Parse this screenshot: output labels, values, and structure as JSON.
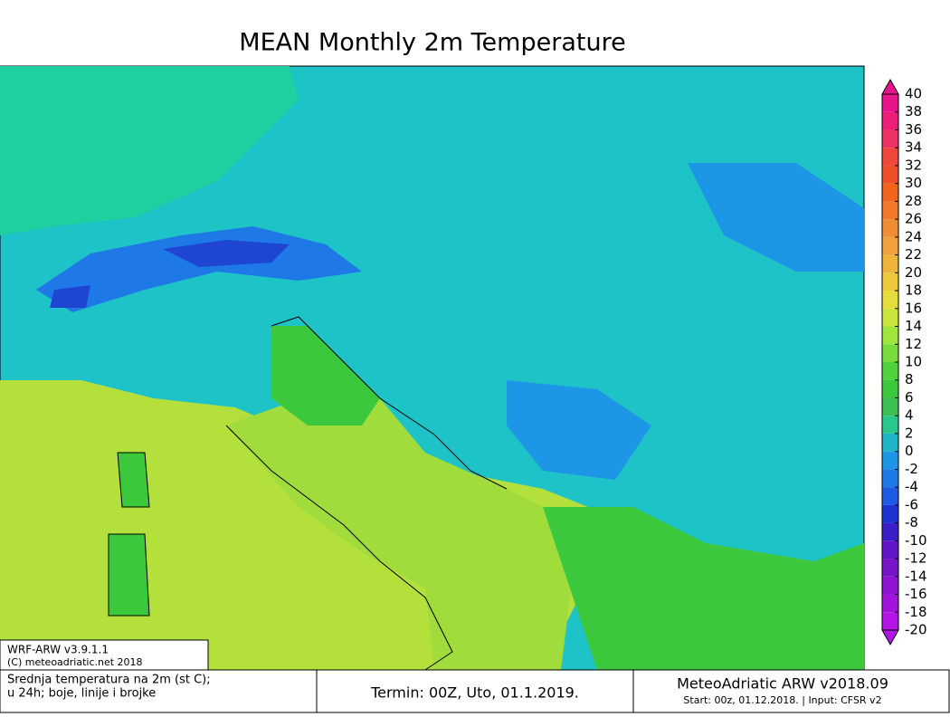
{
  "title": "MEAN Monthly 2m Temperature",
  "colorbar": {
    "ticks": [
      40,
      38,
      36,
      34,
      32,
      30,
      28,
      26,
      24,
      22,
      20,
      18,
      16,
      14,
      12,
      10,
      8,
      6,
      4,
      2,
      0,
      -2,
      -4,
      -6,
      -8,
      -10,
      -12,
      -14,
      -16,
      -18,
      -20
    ],
    "colors": [
      "#e8148c",
      "#ee1e78",
      "#f03264",
      "#f0463c",
      "#f05028",
      "#f0641e",
      "#f07828",
      "#f08c32",
      "#f0a03c",
      "#f0b43c",
      "#f0c83c",
      "#e6dc3c",
      "#c8e63c",
      "#a0e63c",
      "#78dc3c",
      "#50d23c",
      "#3cc83c",
      "#3cbe50",
      "#28c88c",
      "#1eb4c8",
      "#1e96e6",
      "#1e78e6",
      "#1e5ae6",
      "#1e32d2",
      "#3c1ec8",
      "#6414c8",
      "#7814c8",
      "#8c14d2",
      "#a014dc",
      "#b414e6"
    ]
  },
  "model_box": {
    "line1": "WRF-ARW v3.9.1.1",
    "line2": "(C) meteoadriatic.net 2018"
  },
  "footer": {
    "left_line1": "Srednja temperatura na 2m (st C);",
    "left_line2": "u 24h; boje, linije i brojke",
    "center": "Termin: 00Z, Uto, 01.1.2019.",
    "right_line1": "MeteoAdriatic ARW v2018.09",
    "right_line2": "Start: 00z, 01.12.2018. | Input: CFSR v2"
  }
}
